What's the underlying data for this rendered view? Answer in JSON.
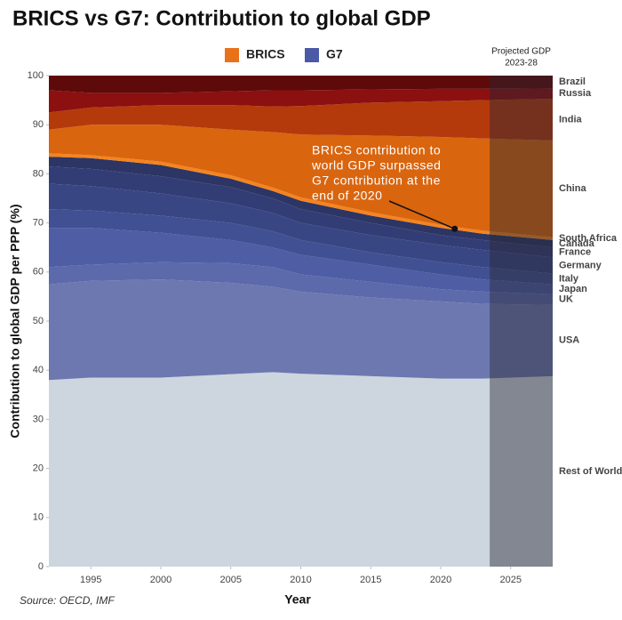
{
  "chart_data": {
    "type": "stacked-area",
    "title": "BRICS vs G7: Contribution to global GDP",
    "xlabel": "Year",
    "ylabel": "Contribution to global GDP per PPP (%)",
    "source": "Source: OECD, IMF",
    "legend": [
      {
        "name": "BRICS",
        "color": "#e8711a"
      },
      {
        "name": "G7",
        "color": "#4a5aa6"
      }
    ],
    "projection": {
      "label_lines": [
        "Projected GDP",
        "2023-28"
      ],
      "start": 2023.5
    },
    "annotation": {
      "lines": [
        "BRICS contribution to",
        "world GDP surpassed",
        "G7 contribution at the",
        "end of 2020"
      ],
      "x": 2021,
      "y": 68.8
    },
    "x": [
      1992,
      1995,
      2000,
      2005,
      2008,
      2010,
      2015,
      2020,
      2023,
      2028
    ],
    "xlim": [
      1992,
      2028
    ],
    "xticks": [
      1995,
      2000,
      2005,
      2010,
      2015,
      2020,
      2025
    ],
    "ylim": [
      0,
      100
    ],
    "yticks": [
      0,
      10,
      20,
      30,
      40,
      50,
      60,
      70,
      80,
      90,
      100
    ],
    "series": [
      {
        "name": "Rest of World",
        "color": "#cdd5df",
        "label_color": "#9a9a9a",
        "values": [
          38,
          38.5,
          38.5,
          39.2,
          39.6,
          39.3,
          38.8,
          38.3,
          38.3,
          38.8
        ]
      },
      {
        "name": "USA",
        "color": "#6d78b0",
        "label_color": "#5f6bb0",
        "values": [
          19.5,
          19.7,
          20,
          18.6,
          17.4,
          16.7,
          16,
          15.7,
          15.2,
          14.5
        ]
      },
      {
        "name": "UK",
        "color": "#5c6aac",
        "label_color": "#4a5aa8",
        "values": [
          3.5,
          3.3,
          3.5,
          4,
          4,
          3.5,
          3.2,
          2.5,
          2.5,
          2.2
        ]
      },
      {
        "name": "Japan",
        "color": "#4e5da4",
        "label_color": "#4a5aa8",
        "values": [
          8,
          7.5,
          6,
          4.7,
          4,
          4,
          3.5,
          3,
          2.5,
          2
        ]
      },
      {
        "name": "Italy",
        "color": "#405093",
        "label_color": "#4a5aa8",
        "values": [
          3.8,
          3.5,
          3.5,
          3.5,
          3.3,
          3,
          2.5,
          2.5,
          2.5,
          2.2
        ]
      },
      {
        "name": "Germany",
        "color": "#394684",
        "label_color": "#2c3564",
        "values": [
          5.2,
          5,
          4.5,
          4,
          3.7,
          3.5,
          3.5,
          3.5,
          3.5,
          3.3
        ]
      },
      {
        "name": "France",
        "color": "#333d75",
        "label_color": "#2c3564",
        "values": [
          3.5,
          3.5,
          3.5,
          3.3,
          3,
          2.8,
          2.5,
          2,
          2,
          2
        ]
      },
      {
        "name": "Canada",
        "color": "#2c3564",
        "label_color": "#2c3564",
        "values": [
          2,
          2.2,
          2.3,
          1.7,
          1.5,
          1.7,
          1.5,
          1.5,
          1.3,
          1.5
        ]
      },
      {
        "name": "South Africa",
        "color": "#f5841f",
        "label_color": "#e8711a",
        "values": [
          0.7,
          0.6,
          0.7,
          0.7,
          0.7,
          0.7,
          0.7,
          0.6,
          0.6,
          0.6
        ]
      },
      {
        "name": "China",
        "color": "#d9650f",
        "label_color": "#d2601a",
        "values": [
          4.8,
          6.2,
          7.5,
          9.3,
          11.3,
          12.8,
          15.6,
          17.9,
          18.8,
          19.7
        ]
      },
      {
        "name": "India",
        "color": "#b53a0b",
        "label_color": "#b03a10",
        "values": [
          3.5,
          3.5,
          4,
          5,
          5.2,
          5.8,
          6.7,
          7.3,
          7.8,
          8.5
        ]
      },
      {
        "name": "Russia",
        "color": "#8c1010",
        "label_color": "#7a0c0c",
        "values": [
          4.5,
          3,
          2.5,
          2.8,
          3.3,
          3.2,
          2.7,
          2.5,
          2.3,
          2.1
        ]
      },
      {
        "name": "Brazil",
        "color": "#5e0a0a",
        "label_color": "#5e0a0a",
        "values": [
          3,
          3.5,
          3.5,
          3.2,
          3,
          3,
          2.8,
          2.7,
          2.7,
          2.6
        ]
      }
    ]
  }
}
